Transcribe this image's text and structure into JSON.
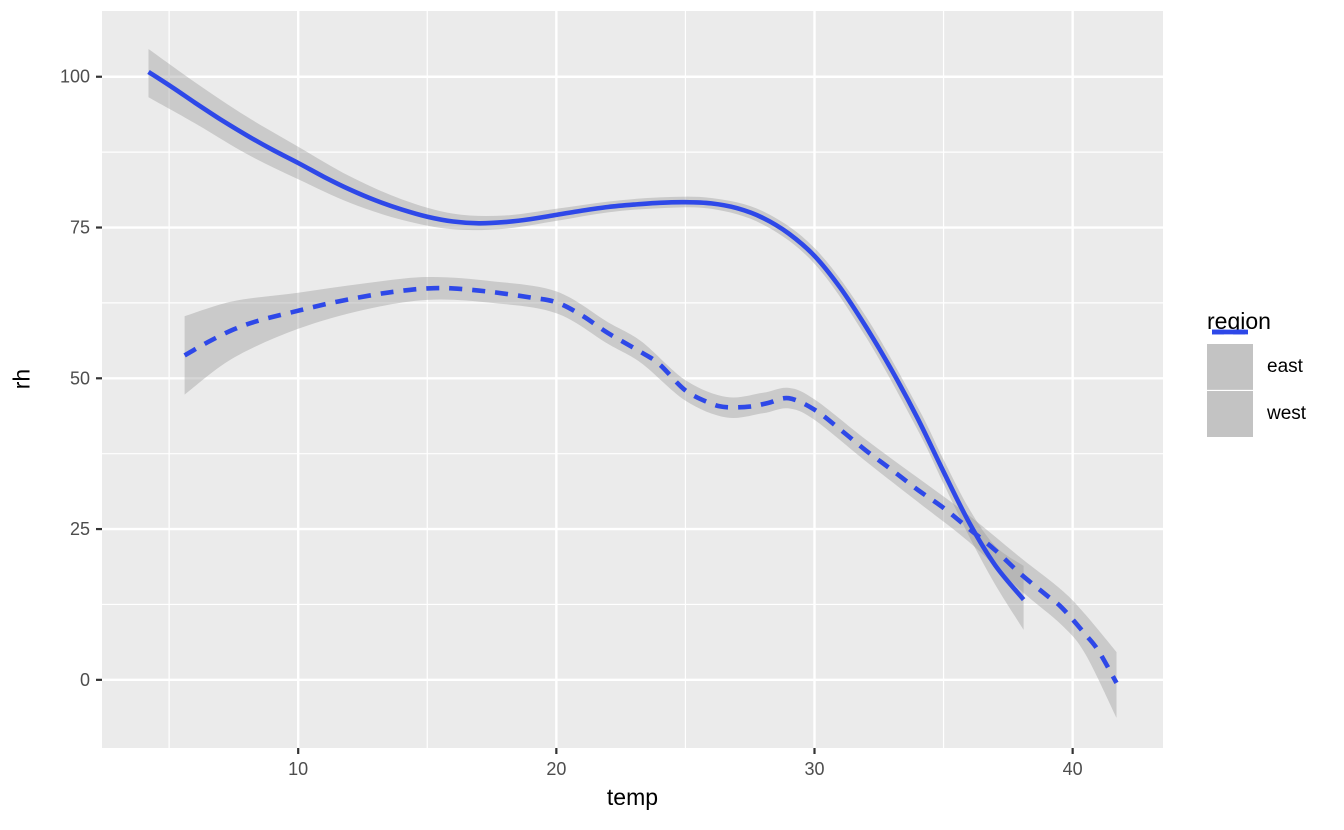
{
  "chart_data": {
    "type": "line",
    "title": "",
    "xlabel": "temp",
    "ylabel": "rh",
    "xlim": [
      2.4,
      43.5
    ],
    "ylim": [
      -11.3,
      110.9
    ],
    "x_ticks": [
      10,
      20,
      30,
      40
    ],
    "y_ticks": [
      0,
      25,
      50,
      75,
      100
    ],
    "x_minor_ticks": [
      5,
      15,
      25,
      35
    ],
    "y_minor_ticks": [
      12.5,
      37.5,
      62.5,
      87.5
    ],
    "grid": true,
    "legend": {
      "title": "region",
      "position": "right",
      "entries": [
        {
          "label": "east",
          "dash": "solid"
        },
        {
          "label": "west",
          "dash": "dashed"
        }
      ]
    },
    "series": [
      {
        "name": "east",
        "dash": "solid",
        "color": "#2e48e8",
        "points": [
          [
            4.2,
            100.8
          ],
          [
            5,
            98.6
          ],
          [
            6,
            95.7
          ],
          [
            7,
            92.9
          ],
          [
            8,
            90.3
          ],
          [
            9,
            87.9
          ],
          [
            10,
            85.7
          ],
          [
            11,
            83.4
          ],
          [
            12,
            81.3
          ],
          [
            13,
            79.5
          ],
          [
            14,
            78.0
          ],
          [
            15,
            76.8
          ],
          [
            16,
            76.0
          ],
          [
            17,
            75.7
          ],
          [
            18,
            75.9
          ],
          [
            19,
            76.4
          ],
          [
            20,
            77.1
          ],
          [
            21,
            77.8
          ],
          [
            22,
            78.4
          ],
          [
            23,
            78.8
          ],
          [
            24,
            79.1
          ],
          [
            25,
            79.2
          ],
          [
            26,
            79.0
          ],
          [
            27,
            78.2
          ],
          [
            28,
            76.6
          ],
          [
            29,
            74.0
          ],
          [
            30,
            70.3
          ],
          [
            31,
            65.0
          ],
          [
            32,
            58.5
          ],
          [
            33,
            51.3
          ],
          [
            34,
            43.3
          ],
          [
            35,
            34.5
          ],
          [
            36,
            26.0
          ],
          [
            37,
            19.0
          ],
          [
            38.1,
            13.3
          ]
        ],
        "band": [
          [
            4.2,
            96.6,
            104.6
          ],
          [
            6,
            92.3,
            99.1
          ],
          [
            8,
            87.2,
            93.4
          ],
          [
            10,
            83.0,
            88.4
          ],
          [
            12,
            79.1,
            83.5
          ],
          [
            14,
            76.3,
            79.7
          ],
          [
            16,
            74.7,
            77.3
          ],
          [
            18,
            74.8,
            77.0
          ],
          [
            20,
            76.1,
            78.1
          ],
          [
            22,
            77.5,
            79.3
          ],
          [
            24,
            78.2,
            80.0
          ],
          [
            26,
            78.1,
            79.9
          ],
          [
            28,
            75.5,
            77.7
          ],
          [
            30,
            69.0,
            71.6
          ],
          [
            32,
            56.8,
            60.2
          ],
          [
            34,
            41.4,
            45.2
          ],
          [
            35,
            32.5,
            36.5
          ],
          [
            36,
            23.7,
            28.3
          ],
          [
            37,
            15.8,
            22.2
          ],
          [
            38.1,
            8.3,
            18.9
          ]
        ]
      },
      {
        "name": "west",
        "dash": "dashed",
        "color": "#2e48e8",
        "points": [
          [
            5.6,
            53.8
          ],
          [
            6.5,
            56.0
          ],
          [
            7.5,
            58.1
          ],
          [
            8.5,
            59.6
          ],
          [
            10,
            61.2
          ],
          [
            11.5,
            62.7
          ],
          [
            13,
            63.9
          ],
          [
            14,
            64.5
          ],
          [
            15,
            64.9
          ],
          [
            16,
            64.9
          ],
          [
            17.5,
            64.3
          ],
          [
            19,
            63.4
          ],
          [
            20,
            62.6
          ],
          [
            21,
            60.4
          ],
          [
            22,
            57.5
          ],
          [
            23.3,
            54.3
          ],
          [
            24,
            52.3
          ],
          [
            25,
            48.0
          ],
          [
            26,
            45.8
          ],
          [
            26.6,
            45.2
          ],
          [
            27.5,
            45.3
          ],
          [
            28.2,
            45.9
          ],
          [
            29,
            46.7
          ],
          [
            30,
            44.8
          ],
          [
            31,
            41.5
          ],
          [
            32,
            38.0
          ],
          [
            33,
            34.8
          ],
          [
            34,
            31.5
          ],
          [
            35,
            28.5
          ],
          [
            36,
            25.0
          ],
          [
            37,
            21.5
          ],
          [
            38,
            17.5
          ],
          [
            39,
            14.0
          ],
          [
            39.6,
            11.9
          ],
          [
            40.5,
            7.5
          ],
          [
            41,
            4.8
          ],
          [
            41.7,
            -0.5
          ]
        ],
        "band": [
          [
            5.6,
            47.3,
            60.3
          ],
          [
            7.5,
            53.4,
            62.8
          ],
          [
            10,
            58.2,
            64.2
          ],
          [
            12.5,
            61.3,
            65.7
          ],
          [
            15,
            63.0,
            66.8
          ],
          [
            17.5,
            62.5,
            66.1
          ],
          [
            20,
            60.8,
            64.4
          ],
          [
            22,
            55.7,
            59.3
          ],
          [
            23.3,
            52.5,
            56.1
          ],
          [
            25,
            46.3,
            49.7
          ],
          [
            26.6,
            43.5,
            46.9
          ],
          [
            28,
            44.2,
            47.6
          ],
          [
            29,
            45.0,
            48.4
          ],
          [
            30,
            43.1,
            46.5
          ],
          [
            32,
            36.2,
            39.8
          ],
          [
            34,
            29.5,
            33.5
          ],
          [
            36,
            22.8,
            27.2
          ],
          [
            38,
            14.8,
            20.2
          ],
          [
            39.6,
            9.0,
            14.8
          ],
          [
            40.5,
            4.2,
            10.8
          ],
          [
            41.7,
            -6.3,
            4.6
          ]
        ]
      }
    ]
  },
  "colors": {
    "line_blue": "#2e48e8",
    "panel_background": "#ebebeb",
    "gridline": "#ffffff",
    "ribbon_gray": "#999999",
    "tick_text": "#4d4d4d",
    "tick_mark": "#333333",
    "legend_key_background": "#c3c3c3",
    "outer_background": "#ffffff"
  }
}
